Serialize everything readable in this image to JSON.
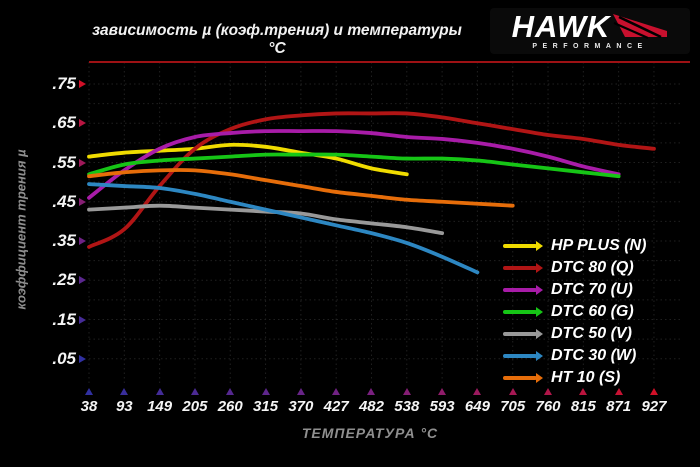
{
  "title": "зависимость µ (коэф.трения) и температуры °C",
  "logo": {
    "brand": "HAWK",
    "sub": "PERFORMANCE"
  },
  "axes": {
    "y_title": "коэффициент трения µ",
    "x_title": "ТЕМПЕРАТУРА °C",
    "y_ticks": [
      ".75",
      ".65",
      ".55",
      ".45",
      ".35",
      ".25",
      ".15",
      ".05"
    ],
    "x_ticks": [
      "38",
      "93",
      "149",
      "205",
      "260",
      "315",
      "370",
      "427",
      "482",
      "538",
      "593",
      "649",
      "705",
      "760",
      "815",
      "871",
      "927"
    ]
  },
  "colors": {
    "background": "#000000",
    "grid": "#202020",
    "top_border": "#9e1114",
    "axis_red": "#da1722",
    "axis_blue": "#2e2e96",
    "label_text": "#f5f5f5",
    "axis_title_text": "#8f8f8f",
    "logo_red": "#c8102e"
  },
  "chart_data": {
    "type": "line",
    "title": "зависимость µ (коэф.трения) и температуры °C",
    "xlabel": "ТЕМПЕРАТУРА °C",
    "ylabel": "коэффициент трения µ",
    "x": [
      38,
      93,
      149,
      205,
      260,
      315,
      370,
      427,
      482,
      538,
      593,
      649,
      705,
      760,
      815,
      871,
      927
    ],
    "ylim": [
      0,
      0.8
    ],
    "y_tick_values": [
      0.75,
      0.65,
      0.55,
      0.45,
      0.35,
      0.25,
      0.15,
      0.05
    ],
    "grid": "dotted",
    "legend_position": "bottom-right",
    "series": [
      {
        "name": "HP PLUS (N)",
        "color": "#f0dc00",
        "values": [
          0.565,
          0.575,
          0.58,
          0.585,
          0.595,
          0.59,
          0.575,
          0.56,
          0.535,
          0.52
        ]
      },
      {
        "name": "DTC 80 (Q)",
        "color": "#b11515",
        "values": [
          0.335,
          0.38,
          0.49,
          0.585,
          0.635,
          0.66,
          0.67,
          0.675,
          0.675,
          0.675,
          0.665,
          0.65,
          0.635,
          0.62,
          0.61,
          0.595,
          0.585
        ]
      },
      {
        "name": "DTC 70 (U)",
        "color": "#a81ca8",
        "values": [
          0.46,
          0.53,
          0.585,
          0.615,
          0.625,
          0.63,
          0.63,
          0.63,
          0.625,
          0.615,
          0.61,
          0.6,
          0.585,
          0.565,
          0.54,
          0.52
        ]
      },
      {
        "name": "DTC 60 (G)",
        "color": "#16c516",
        "values": [
          0.52,
          0.545,
          0.555,
          0.56,
          0.565,
          0.57,
          0.57,
          0.57,
          0.565,
          0.56,
          0.56,
          0.555,
          0.545,
          0.535,
          0.525,
          0.515
        ]
      },
      {
        "name": "DTC 50 (V)",
        "color": "#999999",
        "values": [
          0.43,
          0.435,
          0.44,
          0.435,
          0.43,
          0.425,
          0.42,
          0.405,
          0.395,
          0.385,
          0.37
        ]
      },
      {
        "name": "DTC 30 (W)",
        "color": "#2d87c2",
        "values": [
          0.495,
          0.49,
          0.485,
          0.47,
          0.45,
          0.43,
          0.41,
          0.39,
          0.37,
          0.345,
          0.31,
          0.27
        ]
      },
      {
        "name": "HT 10 (S)",
        "color": "#e66d0a",
        "values": [
          0.515,
          0.525,
          0.53,
          0.53,
          0.52,
          0.505,
          0.49,
          0.475,
          0.465,
          0.455,
          0.45,
          0.445,
          0.44
        ]
      }
    ]
  }
}
